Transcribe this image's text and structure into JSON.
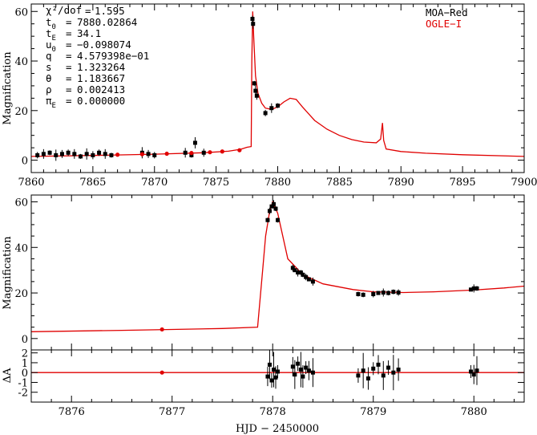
{
  "colors": {
    "model": "#e00000",
    "moa": "#000000",
    "ogle": "#e00000",
    "axes": "#000000"
  },
  "params": [
    {
      "sym": "χ²/dof",
      "eq": "=",
      "val": "1.595"
    },
    {
      "sym": "t0",
      "eq": "=",
      "val": "7880.02864"
    },
    {
      "sym": "tE",
      "eq": "=",
      "val": "34.1"
    },
    {
      "sym": "u0",
      "eq": "=",
      "val": "−0.098074"
    },
    {
      "sym": "q",
      "eq": "=",
      "val": "4.579398e−01"
    },
    {
      "sym": "s",
      "eq": "=",
      "val": "1.323264"
    },
    {
      "sym": "θ",
      "eq": "=",
      "val": "1.183667"
    },
    {
      "sym": "ρ",
      "eq": "=",
      "val": "0.002413"
    },
    {
      "sym": "πE",
      "eq": "=",
      "val": "0.000000"
    }
  ],
  "legend": [
    {
      "label": "MOA−Red",
      "color": "#000000"
    },
    {
      "label": "OGLE−I",
      "color": "#e00000"
    }
  ],
  "chart_data": [
    {
      "type": "line",
      "panel": "top",
      "xlim": [
        7860,
        7900
      ],
      "ylim": [
        -5,
        63
      ],
      "ylabel": "Magnification",
      "xticks": [
        7860,
        7865,
        7870,
        7875,
        7880,
        7885,
        7890,
        7895,
        7900
      ],
      "yticks": [
        0,
        20,
        40,
        60
      ],
      "model": [
        [
          7860,
          1.5
        ],
        [
          7865,
          1.9
        ],
        [
          7870,
          2.4
        ],
        [
          7874,
          3.0
        ],
        [
          7876,
          3.6
        ],
        [
          7877,
          4.4
        ],
        [
          7877.5,
          5.2
        ],
        [
          7877.85,
          5.5
        ],
        [
          7877.9,
          40
        ],
        [
          7877.97,
          60
        ],
        [
          7878.05,
          50
        ],
        [
          7878.2,
          34
        ],
        [
          7878.4,
          27
        ],
        [
          7878.7,
          23
        ],
        [
          7879,
          21
        ],
        [
          7879.5,
          20.5
        ],
        [
          7880,
          21.5
        ],
        [
          7880.5,
          23.5
        ],
        [
          7881,
          25
        ],
        [
          7881.5,
          24.5
        ],
        [
          7882,
          21.5
        ],
        [
          7883,
          16
        ],
        [
          7884,
          12.5
        ],
        [
          7885,
          10
        ],
        [
          7886,
          8.3
        ],
        [
          7887,
          7.3
        ],
        [
          7888,
          7
        ],
        [
          7888.35,
          8.5
        ],
        [
          7888.5,
          15
        ],
        [
          7888.6,
          8
        ],
        [
          7888.8,
          4.5
        ],
        [
          7890,
          3.5
        ],
        [
          7892,
          2.8
        ],
        [
          7895,
          2.2
        ],
        [
          7900,
          1.5
        ]
      ],
      "series": [
        {
          "name": "MOA−Red",
          "x": [
            7860.5,
            7861,
            7861.5,
            7862,
            7862.5,
            7863,
            7863.5,
            7864,
            7864.5,
            7865,
            7865.5,
            7866,
            7866.5,
            7869,
            7869.5,
            7870,
            7872.5,
            7873,
            7873.3,
            7874,
            7877.95,
            7878,
            7878.1,
            7878.2,
            7878.3,
            7879,
            7879.5,
            7880
          ],
          "y": [
            2.0,
            2.5,
            3.0,
            2.0,
            2.5,
            3.0,
            2.5,
            1.5,
            2.5,
            2.0,
            3.0,
            2.5,
            2.0,
            3.0,
            2.5,
            2.0,
            3.0,
            2.0,
            7.0,
            3.0,
            57,
            55,
            31,
            28,
            26,
            19,
            21,
            22
          ]
        },
        {
          "name": "OGLE−I",
          "x": [
            7867,
            7869,
            7871,
            7873,
            7874.5,
            7875.5,
            7876.9
          ],
          "y": [
            2.2,
            2.4,
            2.6,
            2.9,
            3.2,
            3.5,
            4.0
          ]
        }
      ]
    },
    {
      "type": "line",
      "panel": "middle",
      "xlim": [
        7875.6,
        7880.5
      ],
      "ylim": [
        -5,
        63
      ],
      "ylabel": "Magnification",
      "yticks": [
        0,
        20,
        40,
        60
      ],
      "model": [
        [
          7875.6,
          3
        ],
        [
          7876.5,
          3.6
        ],
        [
          7877,
          4.0
        ],
        [
          7877.5,
          4.4
        ],
        [
          7877.85,
          5.0
        ],
        [
          7877.9,
          30
        ],
        [
          7877.93,
          45
        ],
        [
          7877.97,
          56
        ],
        [
          7878.0,
          60
        ],
        [
          7878.05,
          55
        ],
        [
          7878.15,
          35
        ],
        [
          7878.3,
          28
        ],
        [
          7878.5,
          24
        ],
        [
          7878.8,
          21.5
        ],
        [
          7879,
          20.5
        ],
        [
          7879.3,
          20.2
        ],
        [
          7879.6,
          20.5
        ],
        [
          7880,
          21.3
        ],
        [
          7880.3,
          22.2
        ],
        [
          7880.5,
          23
        ]
      ],
      "series": [
        {
          "name": "MOA−Red",
          "x": [
            7877.95,
            7877.97,
            7877.99,
            7878.01,
            7878.03,
            7878.05,
            7878.2,
            7878.22,
            7878.25,
            7878.28,
            7878.3,
            7878.33,
            7878.36,
            7878.4,
            7878.85,
            7878.9,
            7879.0,
            7879.05,
            7879.1,
            7879.15,
            7879.2,
            7879.25,
            7879.97,
            7880.0,
            7880.03
          ],
          "y": [
            52,
            56,
            58,
            59,
            57,
            52,
            31,
            30,
            29,
            29,
            28,
            27,
            26,
            25,
            19.5,
            19.2,
            19.5,
            20,
            20.2,
            20,
            20.5,
            20.2,
            21.5,
            22,
            22
          ]
        },
        {
          "name": "OGLE−I",
          "x": [
            7876.9
          ],
          "y": [
            4.0
          ]
        }
      ]
    },
    {
      "type": "scatter",
      "panel": "residual",
      "xlim": [
        7875.6,
        7880.5
      ],
      "ylim": [
        -3,
        2.3
      ],
      "ylabel": "ΔA",
      "xlabel": "HJD − 2450000",
      "xticks": [
        7876,
        7877,
        7878,
        7879,
        7880
      ],
      "yticks": [
        -2,
        -1,
        0,
        1,
        2
      ],
      "ytick_labels": [
        "-2",
        "-1",
        "0",
        "1",
        "2"
      ],
      "zero_line": 0,
      "series": [
        {
          "name": "MOA−Red",
          "x": [
            7877.95,
            7877.97,
            7877.99,
            7878.01,
            7878.03,
            7878.05,
            7878.2,
            7878.22,
            7878.25,
            7878.28,
            7878.3,
            7878.33,
            7878.36,
            7878.4,
            7878.85,
            7878.9,
            7878.95,
            7879.0,
            7879.05,
            7879.1,
            7879.15,
            7879.2,
            7879.25,
            7879.97,
            7880.0,
            7880.03
          ],
          "y": [
            -0.4,
            0.8,
            -0.8,
            0.3,
            -0.5,
            0.1,
            0.6,
            -0.2,
            0.9,
            0.3,
            -0.4,
            0.5,
            0.2,
            0.0,
            -0.3,
            0.2,
            -0.6,
            0.4,
            0.8,
            -0.3,
            0.5,
            0.0,
            0.3,
            0.1,
            -0.2,
            0.2
          ]
        },
        {
          "name": "OGLE−I",
          "x": [
            7876.9
          ],
          "y": [
            0.0
          ]
        }
      ]
    }
  ]
}
